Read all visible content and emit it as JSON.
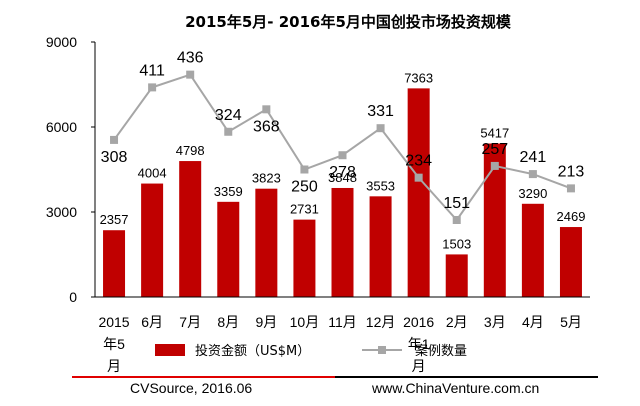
{
  "chart_data": {
    "type": "bar",
    "title": "2015年5月- 2016年5月中国创投市场投资规模",
    "categories": [
      "2015年5月",
      "6月",
      "7月",
      "8月",
      "9月",
      "10月",
      "11月",
      "12月",
      "2016年1月",
      "2月",
      "3月",
      "4月",
      "5月"
    ],
    "series": [
      {
        "name": "投资金额（US$M）",
        "type": "bar",
        "axis": "left",
        "color": "#c00000",
        "values": [
          2357,
          4004,
          4798,
          3359,
          3823,
          2731,
          3848,
          3553,
          7363,
          1503,
          5417,
          3290,
          2469
        ]
      },
      {
        "name": "案例数量",
        "type": "line",
        "axis": "right",
        "color": "#a6a6a6",
        "values": [
          308,
          411,
          436,
          324,
          368,
          250,
          278,
          331,
          234,
          151,
          257,
          241,
          213
        ]
      }
    ],
    "yticks": [
      "0",
      "3000",
      "6000",
      "9000"
    ],
    "ylim": [
      0,
      9000
    ],
    "y2lim": [
      0,
      500
    ],
    "grid": false,
    "legend": "bottom"
  },
  "footer": {
    "source": "CVSource, 2016.06",
    "website": "www.ChinaVenture.com.cn"
  }
}
